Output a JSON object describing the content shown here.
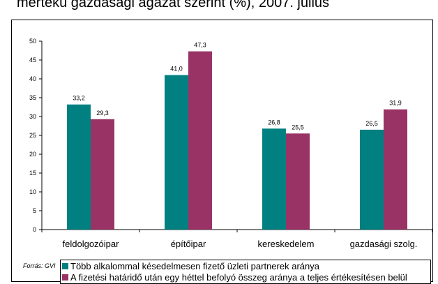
{
  "title": "mértékű gazdasági ágazat szerint (%), 2007. július",
  "source": "Forrás: GVI",
  "colors": {
    "series1": "#008080",
    "series2": "#993366",
    "axis": "#000000"
  },
  "chart_data": {
    "type": "bar",
    "categories": [
      "feldolgozóipar",
      "építőipar",
      "kereskedelem",
      "gazdasági szolg."
    ],
    "series": [
      {
        "name": "Több alkalommal késedelmesen fizető üzleti partnerek aránya",
        "values": [
          33.2,
          41.0,
          26.8,
          26.5
        ],
        "labels": [
          "33,2",
          "41,0",
          "26,8",
          "26,5"
        ]
      },
      {
        "name": "A fizetési határidő után egy héttel befolyó összeg aránya a teljes értékesítésen belül",
        "values": [
          29.3,
          47.3,
          25.5,
          31.9
        ],
        "labels": [
          "29,3",
          "47,3",
          "25,5",
          "31,9"
        ]
      }
    ],
    "ylim": [
      0,
      50
    ],
    "yticks": [
      0,
      5,
      10,
      15,
      20,
      25,
      30,
      35,
      40,
      45,
      50
    ],
    "grid": false,
    "legend_position": "bottom"
  }
}
